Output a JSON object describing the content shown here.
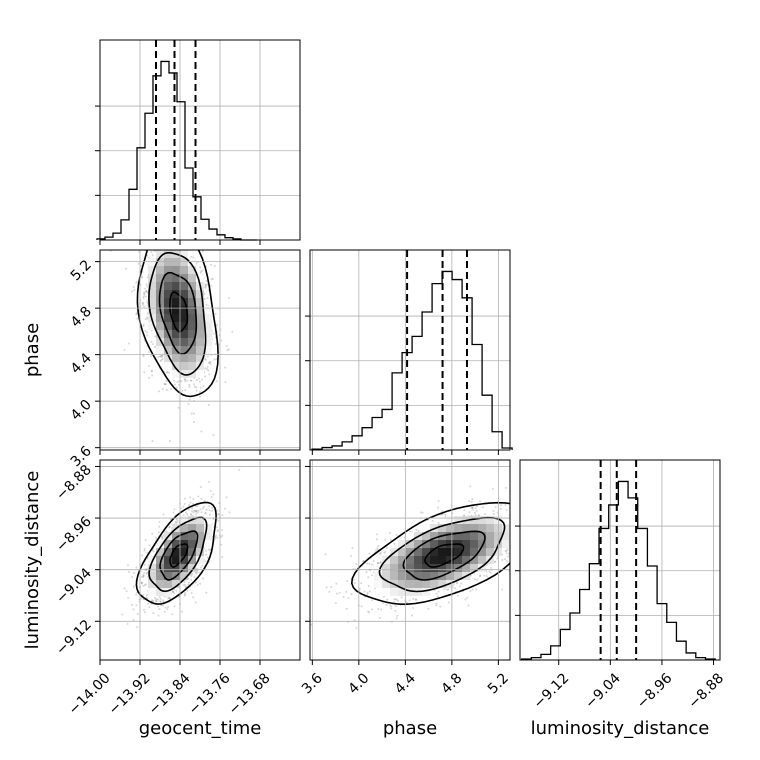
{
  "chart_data": {
    "type": "corner",
    "parameters": [
      "geocent_time",
      "phase",
      "luminosity_distance"
    ],
    "labels": {
      "x": [
        "geocent_time",
        "phase",
        "luminosity_distance"
      ],
      "y": [
        "",
        "phase",
        "luminosity_distance"
      ]
    },
    "ticks": {
      "geocent_time": {
        "values": [
          -14.0,
          -13.92,
          -13.84,
          -13.76,
          -13.68
        ],
        "labels": [
          "−14.00",
          "−13.92",
          "−13.84",
          "−13.76",
          "−13.68"
        ]
      },
      "phase": {
        "values": [
          3.6,
          4.0,
          4.4,
          4.8,
          5.2
        ],
        "labels": [
          "3.6",
          "4.0",
          "4.4",
          "4.8",
          "5.2"
        ]
      },
      "luminosity_distance": {
        "values": [
          -9.12,
          -9.04,
          -8.96,
          -8.88
        ],
        "labels": [
          "−9.12",
          "−9.04",
          "−8.96",
          "−8.88"
        ]
      }
    },
    "ranges": {
      "geocent_time": [
        -14.0,
        -13.6
      ],
      "phase": [
        3.58,
        5.3
      ],
      "luminosity_distance": [
        -9.18,
        -8.87
      ]
    },
    "histograms": {
      "geocent_time": {
        "bins": [
          -13.998,
          -13.982,
          -13.966,
          -13.95,
          -13.934,
          -13.918,
          -13.902,
          -13.886,
          -13.87,
          -13.854,
          -13.838,
          -13.822,
          -13.806,
          -13.79,
          -13.774,
          -13.758,
          -13.742,
          -13.726,
          -13.71,
          -13.694
        ],
        "counts": [
          2,
          5,
          12,
          35,
          88,
          160,
          220,
          285,
          310,
          290,
          240,
          125,
          75,
          36,
          19,
          9,
          4,
          2,
          0,
          0
        ],
        "quantiles": [
          -13.888,
          -13.851,
          -13.809
        ]
      },
      "phase": {
        "bins": [
          3.641,
          3.727,
          3.813,
          3.899,
          3.985,
          4.071,
          4.157,
          4.243,
          4.329,
          4.415,
          4.501,
          4.587,
          4.673,
          4.759,
          4.845,
          4.931,
          5.017,
          5.103,
          5.189,
          5.275
        ],
        "counts": [
          2,
          6,
          10,
          20,
          35,
          55,
          80,
          100,
          190,
          240,
          280,
          340,
          410,
          440,
          420,
          375,
          260,
          135,
          45,
          5
        ],
        "quantiles": [
          4.415,
          4.72,
          4.93
        ]
      },
      "luminosity_distance": {
        "bins": [
          -9.17,
          -9.155,
          -9.14,
          -9.125,
          -9.11,
          -9.095,
          -9.08,
          -9.065,
          -9.05,
          -9.035,
          -9.02,
          -9.005,
          -8.99,
          -8.975,
          -8.96,
          -8.945,
          -8.93,
          -8.915,
          -8.9,
          -8.885
        ],
        "counts": [
          2,
          5,
          12,
          30,
          65,
          100,
          150,
          205,
          280,
          330,
          380,
          345,
          280,
          200,
          120,
          80,
          40,
          15,
          5,
          2
        ],
        "quantiles": [
          -9.055,
          -9.03,
          -9.0
        ]
      }
    },
    "pairs": [
      {
        "x": "geocent_time",
        "y": "phase",
        "center": [
          -13.843,
          4.77
        ],
        "sigma": [
          0.032,
          0.3
        ],
        "correlation": -0.3
      },
      {
        "x": "geocent_time",
        "y": "luminosity_distance",
        "center": [
          -13.843,
          -9.017
        ],
        "sigma": [
          0.032,
          0.032
        ],
        "correlation": 0.6
      },
      {
        "x": "phase",
        "y": "luminosity_distance",
        "center": [
          4.73,
          -9.017
        ],
        "sigma": [
          0.3,
          0.032
        ],
        "correlation": 0.55
      }
    ],
    "grid": true,
    "title": "",
    "legend": "none"
  }
}
